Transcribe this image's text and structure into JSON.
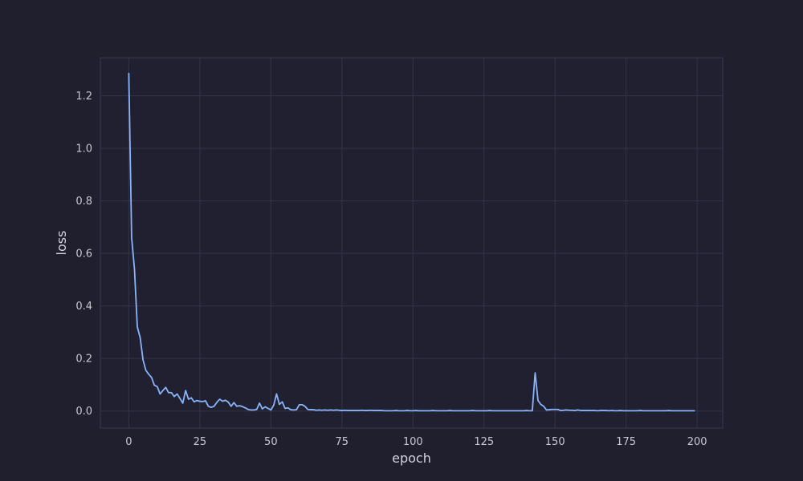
{
  "chart_data": {
    "type": "line",
    "title": "",
    "xlabel": "epoch",
    "ylabel": "loss",
    "xlim": [
      -10,
      209
    ],
    "ylim": [
      -0.065,
      1.345
    ],
    "xticks": [
      0,
      25,
      50,
      75,
      100,
      125,
      150,
      175,
      200
    ],
    "yticks": [
      0.0,
      0.2,
      0.4,
      0.6,
      0.8,
      1.0,
      1.2
    ],
    "grid": true,
    "legend": "none",
    "colors": {
      "background": "#1f1f2e",
      "plot_area": "#202030",
      "grid": "#34344a",
      "spine": "#3a3a50",
      "line": "#89b4fa",
      "text": "#c8c8d4"
    },
    "series": [
      {
        "x": [
          0,
          1,
          2,
          3,
          4,
          5,
          6,
          7,
          8,
          9,
          10,
          11,
          12,
          13,
          14,
          15,
          16,
          17,
          18,
          19,
          20,
          21,
          22,
          23,
          24,
          25,
          26,
          27,
          28,
          29,
          30,
          31,
          32,
          33,
          34,
          35,
          36,
          37,
          38,
          39,
          40,
          41,
          42,
          43,
          44,
          45,
          46,
          47,
          48,
          49,
          50,
          51,
          52,
          53,
          54,
          55,
          56,
          57,
          58,
          59,
          60,
          61,
          62,
          63,
          64,
          65,
          66,
          67,
          68,
          69,
          70,
          71,
          72,
          73,
          74,
          75,
          76,
          77,
          78,
          79,
          80,
          81,
          82,
          83,
          84,
          85,
          86,
          87,
          88,
          89,
          90,
          91,
          92,
          93,
          94,
          95,
          96,
          97,
          98,
          99,
          100,
          101,
          102,
          103,
          104,
          105,
          106,
          107,
          108,
          109,
          110,
          111,
          112,
          113,
          114,
          115,
          116,
          117,
          118,
          119,
          120,
          121,
          122,
          123,
          124,
          125,
          126,
          127,
          128,
          129,
          130,
          131,
          132,
          133,
          134,
          135,
          136,
          137,
          138,
          139,
          140,
          141,
          142,
          143,
          144,
          145,
          146,
          147,
          148,
          149,
          150,
          151,
          152,
          153,
          154,
          155,
          156,
          157,
          158,
          159,
          160,
          161,
          162,
          163,
          164,
          165,
          166,
          167,
          168,
          169,
          170,
          171,
          172,
          173,
          174,
          175,
          176,
          177,
          178,
          179,
          180,
          181,
          182,
          183,
          184,
          185,
          186,
          187,
          188,
          189,
          190,
          191,
          192,
          193,
          194,
          195,
          196,
          197,
          198,
          199
        ],
        "y": [
          1.285,
          0.66,
          0.54,
          0.32,
          0.28,
          0.195,
          0.155,
          0.14,
          0.128,
          0.098,
          0.093,
          0.065,
          0.078,
          0.09,
          0.07,
          0.07,
          0.055,
          0.065,
          0.048,
          0.03,
          0.078,
          0.045,
          0.05,
          0.035,
          0.04,
          0.037,
          0.036,
          0.039,
          0.018,
          0.014,
          0.018,
          0.033,
          0.045,
          0.037,
          0.041,
          0.034,
          0.018,
          0.032,
          0.018,
          0.02,
          0.017,
          0.012,
          0.006,
          0.004,
          0.004,
          0.006,
          0.03,
          0.008,
          0.016,
          0.01,
          0.004,
          0.022,
          0.065,
          0.025,
          0.035,
          0.01,
          0.012,
          0.005,
          0.004,
          0.005,
          0.024,
          0.024,
          0.018,
          0.006,
          0.005,
          0.005,
          0.003,
          0.004,
          0.003,
          0.004,
          0.003,
          0.004,
          0.003,
          0.004,
          0.003,
          0.002,
          0.003,
          0.002,
          0.002,
          0.002,
          0.002,
          0.002,
          0.003,
          0.002,
          0.002,
          0.003,
          0.002,
          0.002,
          0.002,
          0.002,
          0.001,
          0.001,
          0.001,
          0.001,
          0.002,
          0.001,
          0.001,
          0.001,
          0.002,
          0.001,
          0.001,
          0.002,
          0.001,
          0.001,
          0.001,
          0.001,
          0.001,
          0.002,
          0.001,
          0.001,
          0.001,
          0.001,
          0.001,
          0.002,
          0.001,
          0.001,
          0.001,
          0.001,
          0.001,
          0.001,
          0.001,
          0.002,
          0.001,
          0.001,
          0.001,
          0.001,
          0.001,
          0.002,
          0.001,
          0.001,
          0.001,
          0.001,
          0.001,
          0.001,
          0.001,
          0.001,
          0.001,
          0.001,
          0.001,
          0.001,
          0.002,
          0.001,
          0.001,
          0.145,
          0.04,
          0.025,
          0.018,
          0.004,
          0.005,
          0.006,
          0.006,
          0.006,
          0.002,
          0.003,
          0.004,
          0.003,
          0.003,
          0.002,
          0.004,
          0.002,
          0.002,
          0.002,
          0.002,
          0.002,
          0.002,
          0.001,
          0.002,
          0.002,
          0.002,
          0.001,
          0.002,
          0.001,
          0.001,
          0.002,
          0.001,
          0.001,
          0.001,
          0.001,
          0.001,
          0.001,
          0.002,
          0.001,
          0.001,
          0.001,
          0.001,
          0.001,
          0.001,
          0.001,
          0.001,
          0.001,
          0.002,
          0.001,
          0.001,
          0.001,
          0.001,
          0.001,
          0.001,
          0.001,
          0.001,
          0.001
        ]
      }
    ]
  }
}
